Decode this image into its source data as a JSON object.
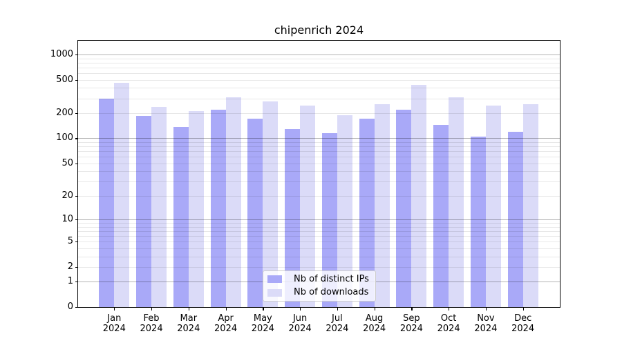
{
  "chart_data": {
    "type": "bar",
    "title": "chipenrich 2024",
    "categories": [
      "Jan 2024",
      "Feb 2024",
      "Mar 2024",
      "Apr 2024",
      "May 2024",
      "Jun 2024",
      "Jul 2024",
      "Aug 2024",
      "Sep 2024",
      "Oct 2024",
      "Nov 2024",
      "Dec 2024"
    ],
    "series": [
      {
        "name": "Nb of distinct IPs",
        "color": "#a9a9f8",
        "values": [
          300,
          186,
          136,
          220,
          171,
          130,
          116,
          171,
          220,
          146,
          105,
          119
        ]
      },
      {
        "name": "Nb of downloads",
        "color": "#dbdbf8",
        "values": [
          460,
          237,
          212,
          310,
          278,
          246,
          190,
          258,
          433,
          310,
          248,
          258
        ]
      }
    ],
    "yscale": "log1p",
    "ylim": [
      0,
      1460
    ],
    "yticks": [
      "1000",
      "500",
      "200",
      "100",
      "50",
      "20",
      "10",
      "5",
      "2",
      "1",
      "0"
    ],
    "grid": "on",
    "legend_position": "lower-center",
    "colors": {
      "axis": "#000000",
      "grid_major": "#b0b0b0",
      "grid_minor": "#e8e8e8",
      "legend_border": "#cccccc"
    }
  }
}
